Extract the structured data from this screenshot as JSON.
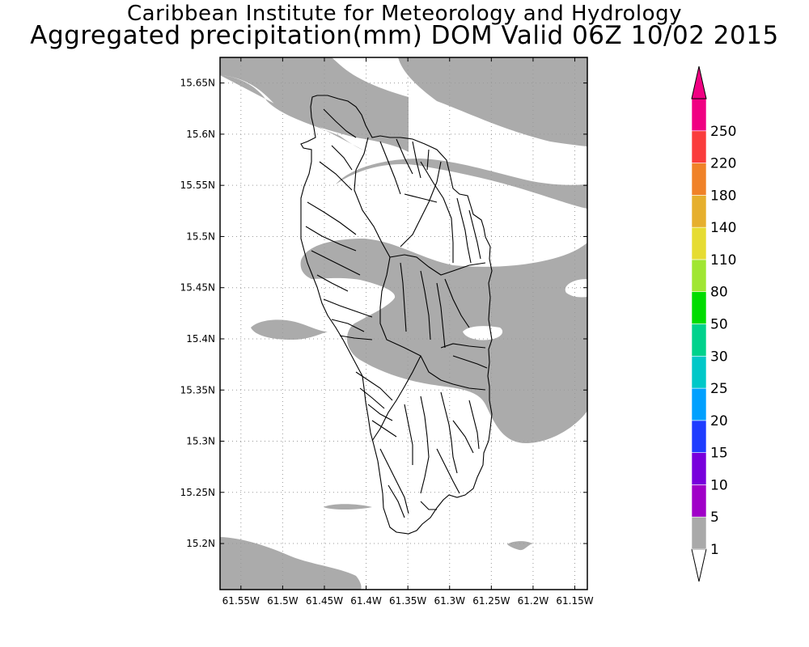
{
  "title": {
    "line1": "Caribbean Institute for Meteorology and Hydrology",
    "line2": "Aggregated precipitation(mm) DOM Valid 06Z 10/02 2015"
  },
  "map": {
    "region": "Dominica",
    "lon_range": [
      -61.575,
      -61.135
    ],
    "lat_range": [
      15.155,
      15.675
    ],
    "lat_ticks": [
      {
        "value": 15.2,
        "label": "15.2N"
      },
      {
        "value": 15.25,
        "label": "15.25N"
      },
      {
        "value": 15.3,
        "label": "15.3N"
      },
      {
        "value": 15.35,
        "label": "15.35N"
      },
      {
        "value": 15.4,
        "label": "15.4N"
      },
      {
        "value": 15.45,
        "label": "15.45N"
      },
      {
        "value": 15.5,
        "label": "15.5N"
      },
      {
        "value": 15.55,
        "label": "15.55N"
      },
      {
        "value": 15.6,
        "label": "15.6N"
      },
      {
        "value": 15.65,
        "label": "15.65N"
      }
    ],
    "lon_ticks": [
      {
        "value": -61.55,
        "label": "61.55W"
      },
      {
        "value": -61.5,
        "label": "61.5W"
      },
      {
        "value": -61.45,
        "label": "61.45W"
      },
      {
        "value": -61.4,
        "label": "61.4W"
      },
      {
        "value": -61.35,
        "label": "61.35W"
      },
      {
        "value": -61.3,
        "label": "61.3W"
      },
      {
        "value": -61.25,
        "label": "61.25W"
      },
      {
        "value": -61.2,
        "label": "61.2W"
      },
      {
        "value": -61.15,
        "label": "61.15W"
      }
    ],
    "grid": "dotted",
    "shaded_class": "1-5 mm"
  },
  "colorbar": {
    "levels": [
      "1",
      "5",
      "10",
      "15",
      "20",
      "25",
      "30",
      "50",
      "80",
      "110",
      "140",
      "180",
      "220",
      "250"
    ],
    "colors": [
      "#a9a9a9",
      "#a000c8",
      "#7800dc",
      "#1e3cff",
      "#00a0ff",
      "#00c8c8",
      "#00d28c",
      "#00dc00",
      "#a0e632",
      "#e6dc32",
      "#e6af2d",
      "#f08228",
      "#fa3c3c",
      "#f00082"
    ],
    "under_color": "#ffffff",
    "over_color": "#f00082"
  }
}
